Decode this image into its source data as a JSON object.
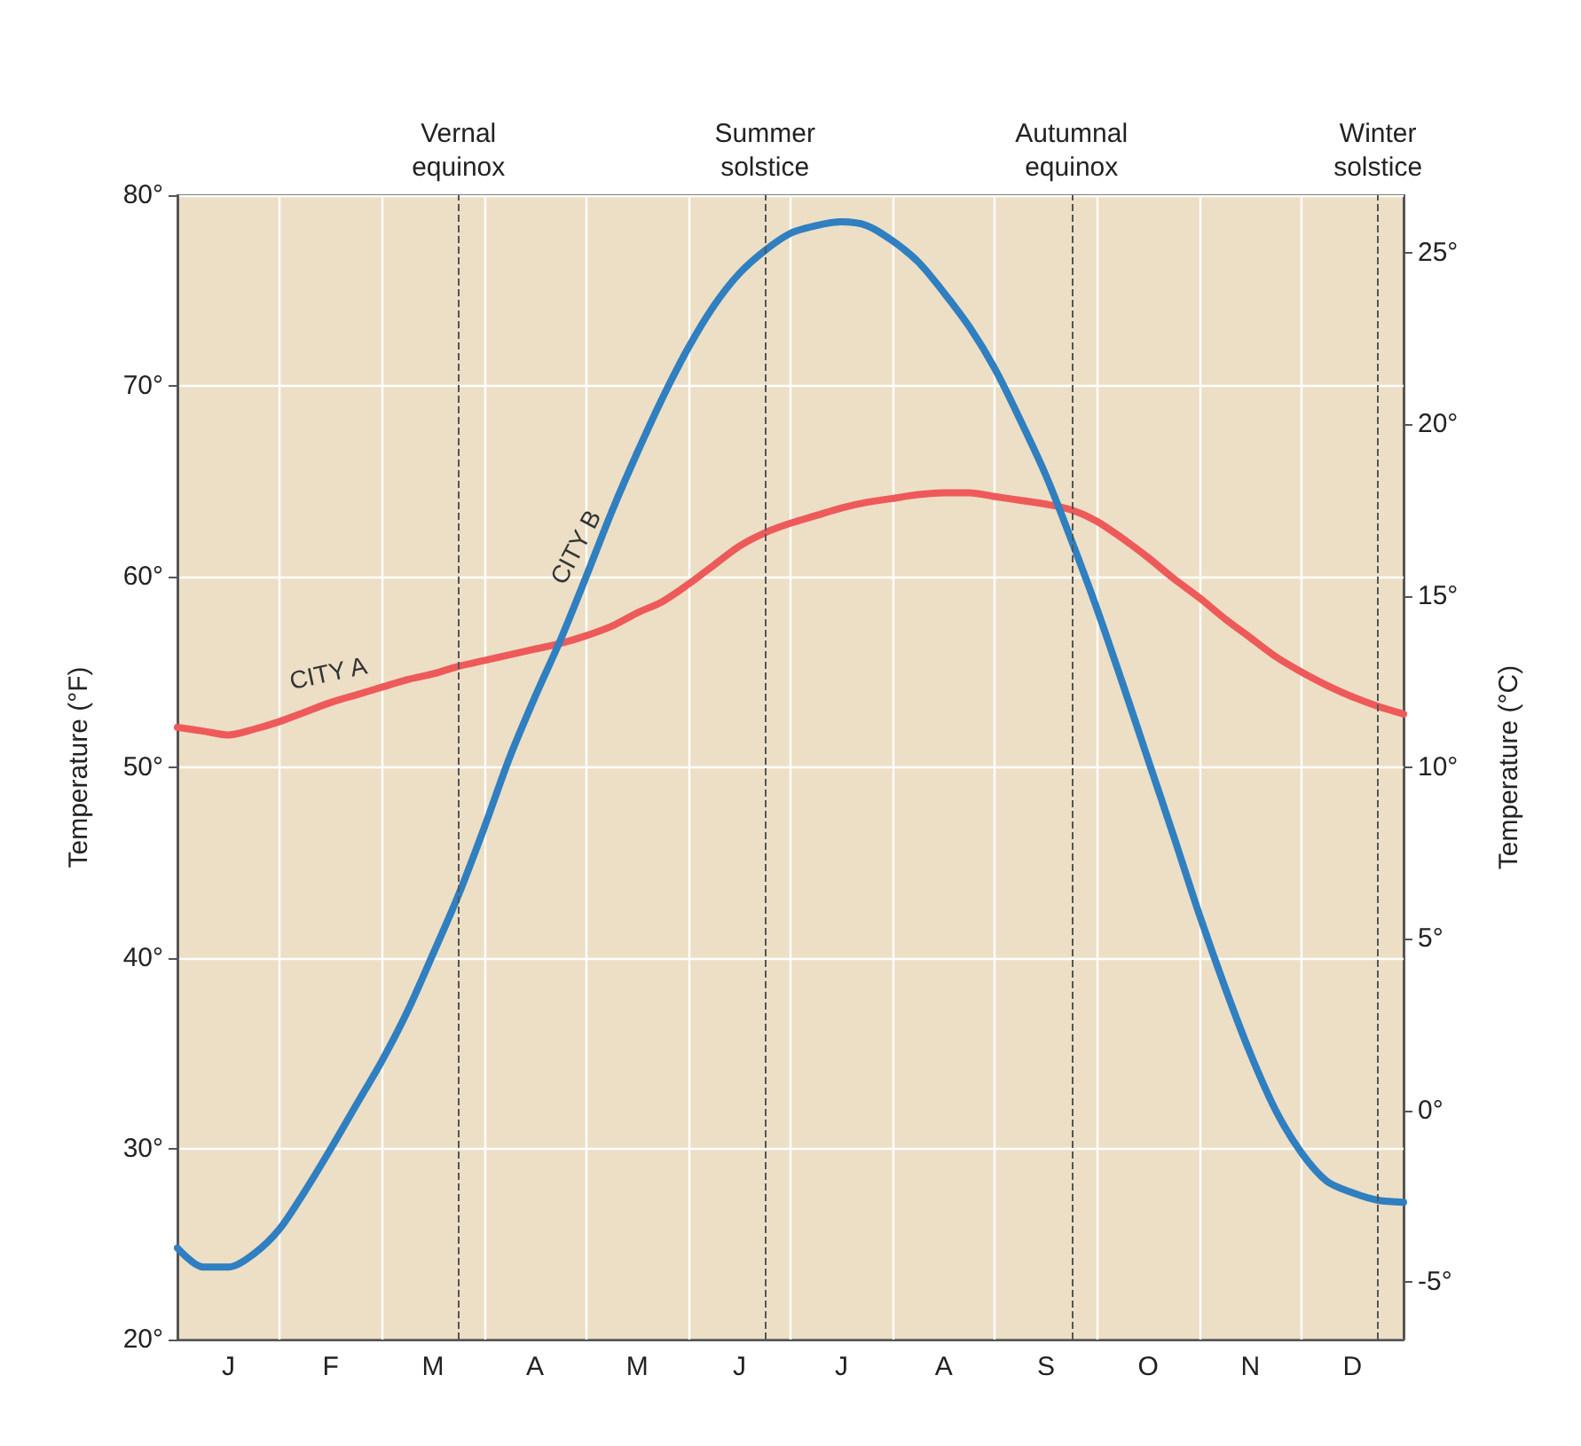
{
  "chart_data": {
    "type": "line",
    "ylabel": "Temperature (°F)",
    "y2label": "Temperature (°C)",
    "categories": [
      null,
      null,
      "J",
      null,
      null,
      null,
      "F",
      null,
      null,
      null,
      "M",
      null,
      null,
      null,
      "A",
      null,
      null,
      null,
      "M",
      null,
      null,
      null,
      "J",
      null,
      null,
      null,
      "J",
      null,
      null,
      null,
      "A",
      null,
      null,
      null,
      "S",
      null,
      null,
      null,
      "O",
      null,
      null,
      null,
      "N",
      null,
      null,
      null,
      "D",
      null,
      null
    ],
    "ylim": [
      20,
      80
    ],
    "yticks": [
      {
        "value": 20,
        "label": "20°"
      },
      {
        "value": 30,
        "label": "30°"
      },
      {
        "value": 40,
        "label": "40°"
      },
      {
        "value": 50,
        "label": "50°"
      },
      {
        "value": 60,
        "label": "60°"
      },
      {
        "value": 70,
        "label": "70°"
      },
      {
        "value": 80,
        "label": "80°"
      }
    ],
    "y2lim": [
      -6.67,
      26.67
    ],
    "y2ticks": [
      {
        "value": -5,
        "label": "-5°"
      },
      {
        "value": 0,
        "label": "0°"
      },
      {
        "value": 5,
        "label": "5°"
      },
      {
        "value": 10,
        "label": "10°"
      },
      {
        "value": 15,
        "label": "15°"
      },
      {
        "value": 20,
        "label": "20°"
      },
      {
        "value": 25,
        "label": "25°"
      }
    ],
    "grid": true,
    "legend": false,
    "marker": "none",
    "line_style": "solid",
    "series": [
      {
        "name": "CITY A",
        "color": "#ee5a5a",
        "values": [
          52.1,
          51.9,
          51.7,
          52.0,
          52.4,
          52.9,
          53.4,
          53.8,
          54.2,
          54.6,
          54.9,
          55.3,
          55.6,
          55.9,
          56.2,
          56.5,
          56.9,
          57.4,
          58.1,
          58.7,
          59.6,
          60.6,
          61.6,
          62.3,
          62.8,
          63.2,
          63.6,
          63.9,
          64.1,
          64.3,
          64.4,
          64.4,
          64.2,
          64.0,
          63.8,
          63.5,
          62.9,
          62.0,
          61.0,
          59.9,
          58.9,
          57.8,
          56.8,
          55.8,
          55.0,
          54.3,
          53.7,
          53.2,
          52.8
        ]
      },
      {
        "name": "CITY B",
        "color": "#2f7fc1",
        "values": [
          24.8,
          23.8,
          23.8,
          24.5,
          25.8,
          27.8,
          30.0,
          32.3,
          34.6,
          37.2,
          40.2,
          43.3,
          46.8,
          50.5,
          53.7,
          56.7,
          60.0,
          63.4,
          66.5,
          69.4,
          72.0,
          74.2,
          75.9,
          77.1,
          78.0,
          78.4,
          78.6,
          78.4,
          77.6,
          76.5,
          74.9,
          73.1,
          70.9,
          68.2,
          65.3,
          61.9,
          58.3,
          54.4,
          50.4,
          46.4,
          42.3,
          38.5,
          35.0,
          32.0,
          29.8,
          28.3,
          27.7,
          27.3,
          27.2
        ]
      }
    ],
    "annotations": [
      "Vernal\nequinox",
      "Summer\nsolstice",
      "Autumnal\nequinox",
      "Winter\nsolstice"
    ]
  }
}
